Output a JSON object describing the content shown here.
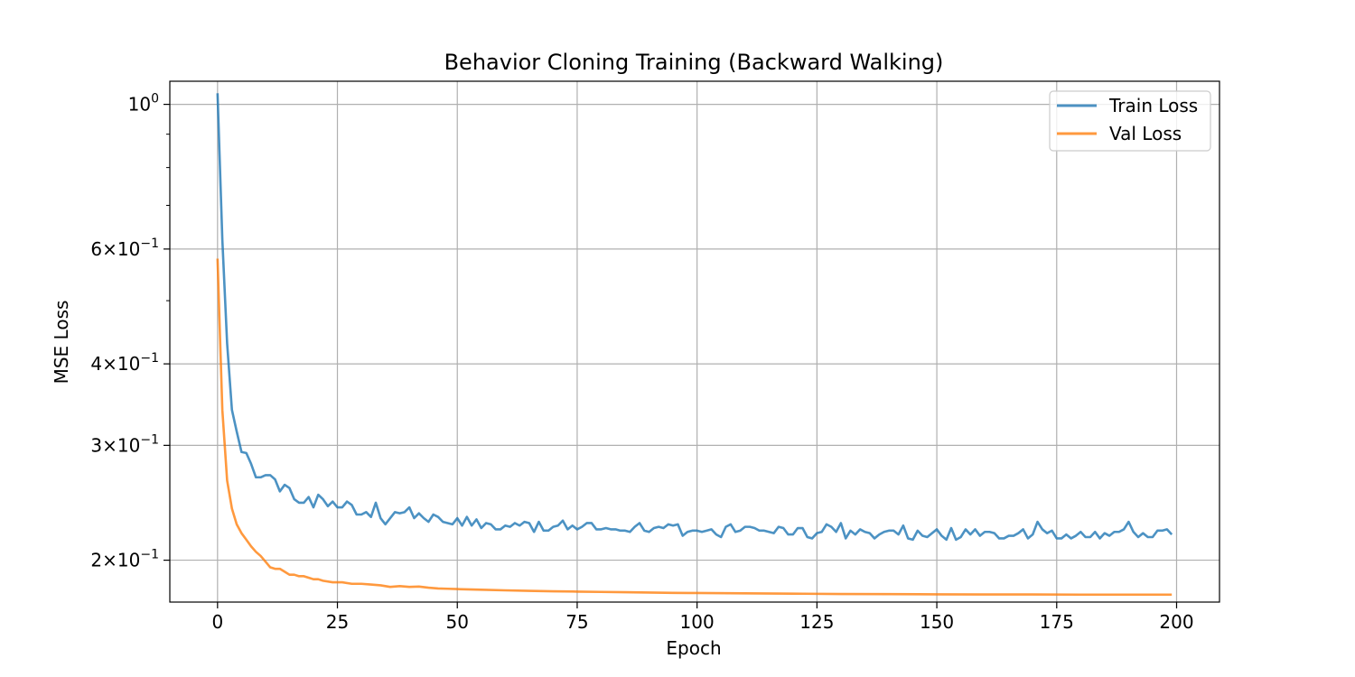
{
  "chart_data": {
    "type": "line",
    "title": "Behavior Cloning Training (Backward Walking)",
    "xlabel": "Epoch",
    "ylabel": "MSE Loss",
    "xlim": [
      -9.95,
      208.95
    ],
    "ylim": [
      0.1725,
      1.085
    ],
    "yscale": "log",
    "grid": true,
    "legend_position": "top-right",
    "x_ticks": [
      {
        "value": 0,
        "label": "0"
      },
      {
        "value": 25,
        "label": "25"
      },
      {
        "value": 50,
        "label": "50"
      },
      {
        "value": 75,
        "label": "75"
      },
      {
        "value": 100,
        "label": "100"
      },
      {
        "value": 125,
        "label": "125"
      },
      {
        "value": 150,
        "label": "150"
      },
      {
        "value": 175,
        "label": "175"
      },
      {
        "value": 200,
        "label": "200"
      }
    ],
    "y_major_ticks": [
      {
        "value": 1.0,
        "mantissa": "",
        "base": "10",
        "exp": "0"
      },
      {
        "value": 0.6,
        "mantissa": "6",
        "base": "10",
        "exp": "−1"
      },
      {
        "value": 0.4,
        "mantissa": "4",
        "base": "10",
        "exp": "−1"
      },
      {
        "value": 0.3,
        "mantissa": "3",
        "base": "10",
        "exp": "−1"
      },
      {
        "value": 0.2,
        "mantissa": "2",
        "base": "10",
        "exp": "−1"
      }
    ],
    "y_minor_ticks": [
      0.9,
      0.8,
      0.7,
      0.5
    ],
    "series": [
      {
        "name": "Train Loss",
        "color": "#1f77b4",
        "points": [
          [
            0,
            1.04
          ],
          [
            1,
            0.62
          ],
          [
            2,
            0.43
          ],
          [
            3,
            0.34
          ],
          [
            4,
            0.315
          ],
          [
            5,
            0.293
          ],
          [
            6,
            0.292
          ],
          [
            7,
            0.281
          ],
          [
            8,
            0.268
          ],
          [
            9,
            0.268
          ],
          [
            10,
            0.27
          ],
          [
            11,
            0.27
          ],
          [
            12,
            0.266
          ],
          [
            13,
            0.255
          ],
          [
            14,
            0.261
          ],
          [
            15,
            0.258
          ],
          [
            16,
            0.248
          ],
          [
            17,
            0.245
          ],
          [
            18,
            0.245
          ],
          [
            19,
            0.25
          ],
          [
            20,
            0.241
          ],
          [
            21,
            0.252
          ],
          [
            22,
            0.248
          ],
          [
            23,
            0.242
          ],
          [
            24,
            0.246
          ],
          [
            25,
            0.241
          ],
          [
            26,
            0.241
          ],
          [
            27,
            0.246
          ],
          [
            28,
            0.243
          ],
          [
            29,
            0.235
          ],
          [
            30,
            0.235
          ],
          [
            31,
            0.237
          ],
          [
            32,
            0.233
          ],
          [
            33,
            0.245
          ],
          [
            34,
            0.232
          ],
          [
            35,
            0.227
          ],
          [
            36,
            0.232
          ],
          [
            37,
            0.237
          ],
          [
            38,
            0.236
          ],
          [
            39,
            0.237
          ],
          [
            40,
            0.241
          ],
          [
            41,
            0.232
          ],
          [
            42,
            0.236
          ],
          [
            43,
            0.232
          ],
          [
            44,
            0.229
          ],
          [
            45,
            0.235
          ],
          [
            46,
            0.233
          ],
          [
            47,
            0.229
          ],
          [
            48,
            0.228
          ],
          [
            49,
            0.227
          ],
          [
            50,
            0.232
          ],
          [
            51,
            0.226
          ],
          [
            52,
            0.233
          ],
          [
            53,
            0.226
          ],
          [
            54,
            0.231
          ],
          [
            55,
            0.224
          ],
          [
            56,
            0.228
          ],
          [
            57,
            0.227
          ],
          [
            58,
            0.223
          ],
          [
            59,
            0.223
          ],
          [
            60,
            0.226
          ],
          [
            61,
            0.225
          ],
          [
            62,
            0.228
          ],
          [
            63,
            0.226
          ],
          [
            64,
            0.229
          ],
          [
            65,
            0.228
          ],
          [
            66,
            0.221
          ],
          [
            67,
            0.229
          ],
          [
            68,
            0.222
          ],
          [
            69,
            0.222
          ],
          [
            70,
            0.225
          ],
          [
            71,
            0.226
          ],
          [
            72,
            0.23
          ],
          [
            73,
            0.223
          ],
          [
            74,
            0.226
          ],
          [
            75,
            0.223
          ],
          [
            76,
            0.225
          ],
          [
            77,
            0.228
          ],
          [
            78,
            0.228
          ],
          [
            79,
            0.223
          ],
          [
            80,
            0.223
          ],
          [
            81,
            0.224
          ],
          [
            82,
            0.223
          ],
          [
            83,
            0.223
          ],
          [
            84,
            0.222
          ],
          [
            85,
            0.222
          ],
          [
            86,
            0.221
          ],
          [
            87,
            0.225
          ],
          [
            88,
            0.228
          ],
          [
            89,
            0.222
          ],
          [
            90,
            0.221
          ],
          [
            91,
            0.224
          ],
          [
            92,
            0.225
          ],
          [
            93,
            0.224
          ],
          [
            94,
            0.227
          ],
          [
            95,
            0.226
          ],
          [
            96,
            0.227
          ],
          [
            97,
            0.218
          ],
          [
            98,
            0.221
          ],
          [
            99,
            0.222
          ],
          [
            100,
            0.222
          ],
          [
            101,
            0.221
          ],
          [
            102,
            0.222
          ],
          [
            103,
            0.223
          ],
          [
            104,
            0.219
          ],
          [
            105,
            0.217
          ],
          [
            106,
            0.225
          ],
          [
            107,
            0.227
          ],
          [
            108,
            0.221
          ],
          [
            109,
            0.222
          ],
          [
            110,
            0.225
          ],
          [
            111,
            0.225
          ],
          [
            112,
            0.224
          ],
          [
            113,
            0.222
          ],
          [
            114,
            0.222
          ],
          [
            115,
            0.221
          ],
          [
            116,
            0.22
          ],
          [
            117,
            0.225
          ],
          [
            118,
            0.224
          ],
          [
            119,
            0.219
          ],
          [
            120,
            0.219
          ],
          [
            121,
            0.224
          ],
          [
            122,
            0.224
          ],
          [
            123,
            0.217
          ],
          [
            124,
            0.216
          ],
          [
            125,
            0.22
          ],
          [
            126,
            0.221
          ],
          [
            127,
            0.227
          ],
          [
            128,
            0.225
          ],
          [
            129,
            0.221
          ],
          [
            130,
            0.228
          ],
          [
            131,
            0.216
          ],
          [
            132,
            0.222
          ],
          [
            133,
            0.219
          ],
          [
            134,
            0.223
          ],
          [
            135,
            0.221
          ],
          [
            136,
            0.22
          ],
          [
            137,
            0.216
          ],
          [
            138,
            0.219
          ],
          [
            139,
            0.221
          ],
          [
            140,
            0.222
          ],
          [
            141,
            0.222
          ],
          [
            142,
            0.219
          ],
          [
            143,
            0.226
          ],
          [
            144,
            0.216
          ],
          [
            145,
            0.215
          ],
          [
            146,
            0.222
          ],
          [
            147,
            0.218
          ],
          [
            148,
            0.217
          ],
          [
            149,
            0.22
          ],
          [
            150,
            0.223
          ],
          [
            151,
            0.218
          ],
          [
            152,
            0.215
          ],
          [
            153,
            0.224
          ],
          [
            154,
            0.215
          ],
          [
            155,
            0.217
          ],
          [
            156,
            0.223
          ],
          [
            157,
            0.219
          ],
          [
            158,
            0.223
          ],
          [
            159,
            0.218
          ],
          [
            160,
            0.221
          ],
          [
            161,
            0.221
          ],
          [
            162,
            0.22
          ],
          [
            163,
            0.216
          ],
          [
            164,
            0.216
          ],
          [
            165,
            0.218
          ],
          [
            166,
            0.218
          ],
          [
            167,
            0.22
          ],
          [
            168,
            0.223
          ],
          [
            169,
            0.216
          ],
          [
            170,
            0.219
          ],
          [
            171,
            0.229
          ],
          [
            172,
            0.223
          ],
          [
            173,
            0.22
          ],
          [
            174,
            0.222
          ],
          [
            175,
            0.216
          ],
          [
            176,
            0.216
          ],
          [
            177,
            0.219
          ],
          [
            178,
            0.216
          ],
          [
            179,
            0.218
          ],
          [
            180,
            0.221
          ],
          [
            181,
            0.217
          ],
          [
            182,
            0.217
          ],
          [
            183,
            0.221
          ],
          [
            184,
            0.216
          ],
          [
            185,
            0.22
          ],
          [
            186,
            0.218
          ],
          [
            187,
            0.221
          ],
          [
            188,
            0.221
          ],
          [
            189,
            0.223
          ],
          [
            190,
            0.229
          ],
          [
            191,
            0.221
          ],
          [
            192,
            0.217
          ],
          [
            193,
            0.22
          ],
          [
            194,
            0.217
          ],
          [
            195,
            0.217
          ],
          [
            196,
            0.222
          ],
          [
            197,
            0.222
          ],
          [
            198,
            0.223
          ],
          [
            199,
            0.219
          ]
        ]
      },
      {
        "name": "Val Loss",
        "color": "#ff7f0e",
        "points": [
          [
            0,
            0.58
          ],
          [
            1,
            0.34
          ],
          [
            2,
            0.265
          ],
          [
            3,
            0.24
          ],
          [
            4,
            0.227
          ],
          [
            5,
            0.22
          ],
          [
            6,
            0.215
          ],
          [
            7,
            0.21
          ],
          [
            8,
            0.206
          ],
          [
            9,
            0.203
          ],
          [
            10,
            0.199
          ],
          [
            11,
            0.195
          ],
          [
            12,
            0.194
          ],
          [
            13,
            0.194
          ],
          [
            14,
            0.192
          ],
          [
            15,
            0.19
          ],
          [
            16,
            0.19
          ],
          [
            17,
            0.189
          ],
          [
            18,
            0.189
          ],
          [
            19,
            0.188
          ],
          [
            20,
            0.187
          ],
          [
            21,
            0.187
          ],
          [
            22,
            0.186
          ],
          [
            24,
            0.185
          ],
          [
            26,
            0.185
          ],
          [
            28,
            0.184
          ],
          [
            30,
            0.184
          ],
          [
            32,
            0.1835
          ],
          [
            34,
            0.183
          ],
          [
            36,
            0.182
          ],
          [
            38,
            0.1825
          ],
          [
            40,
            0.182
          ],
          [
            42,
            0.1822
          ],
          [
            44,
            0.1815
          ],
          [
            46,
            0.181
          ],
          [
            48,
            0.1808
          ],
          [
            50,
            0.1806
          ],
          [
            55,
            0.1802
          ],
          [
            60,
            0.1798
          ],
          [
            65,
            0.1795
          ],
          [
            70,
            0.1792
          ],
          [
            75,
            0.179
          ],
          [
            80,
            0.1788
          ],
          [
            85,
            0.1786
          ],
          [
            90,
            0.1784
          ],
          [
            95,
            0.1782
          ],
          [
            100,
            0.1781
          ],
          [
            110,
            0.1779
          ],
          [
            120,
            0.1777
          ],
          [
            130,
            0.1775
          ],
          [
            140,
            0.1774
          ],
          [
            150,
            0.1773
          ],
          [
            160,
            0.1772
          ],
          [
            170,
            0.1772
          ],
          [
            180,
            0.1771
          ],
          [
            190,
            0.1771
          ],
          [
            199,
            0.1771
          ]
        ]
      }
    ]
  }
}
